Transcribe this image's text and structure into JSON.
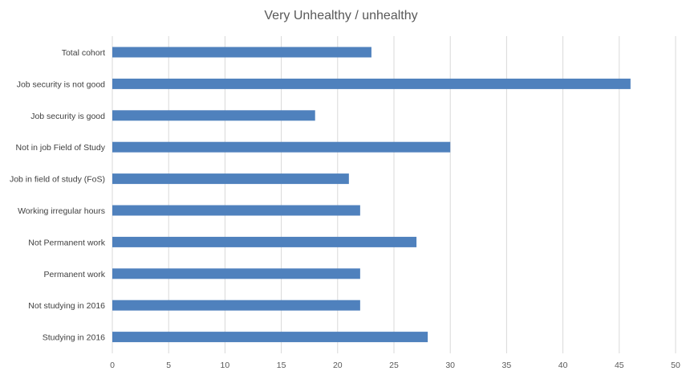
{
  "chart_data": {
    "type": "bar",
    "orientation": "horizontal",
    "title": "Very Unhealthy / unhealthy",
    "xlabel": "",
    "ylabel": "",
    "categories": [
      "Total cohort",
      "Job security is not good",
      "Job security is good",
      "Not in job Field of Study",
      "Job in field of study (FoS)",
      "Working irregular hours",
      "Not Permanent work",
      "Permanent work",
      "Not studying in 2016",
      "Studying in 2016"
    ],
    "values": [
      23,
      46,
      18,
      30,
      21,
      22,
      27,
      22,
      22,
      28
    ],
    "xlim": [
      0,
      50
    ],
    "xticks": [
      "0",
      "5",
      "10",
      "15",
      "20",
      "25",
      "30",
      "35",
      "40",
      "45",
      "50"
    ],
    "grid": true,
    "legend": "none",
    "bar_color": "#4f81bd"
  }
}
